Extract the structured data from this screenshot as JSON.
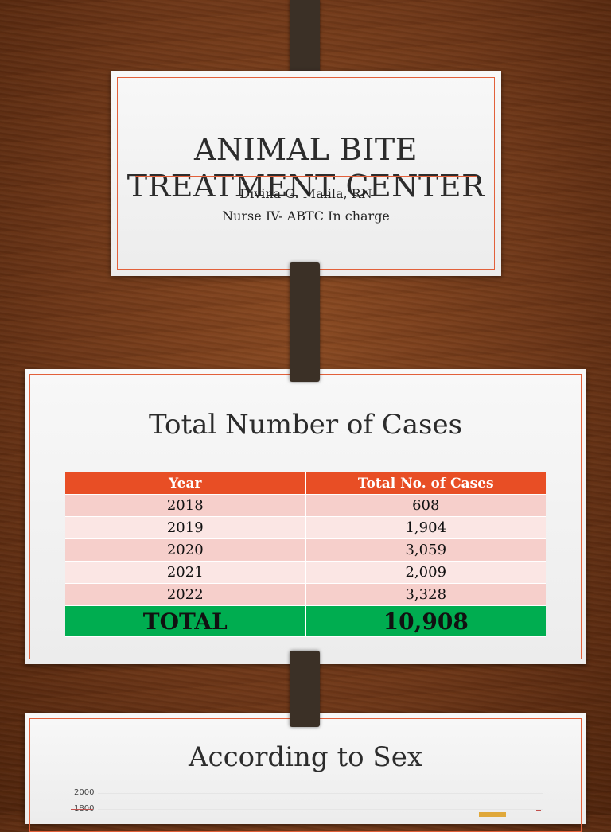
{
  "slide1": {
    "title": "ANIMAL BITE TREATMENT CENTER",
    "presenter": "Divina G. Malila, RN",
    "role": "Nurse IV- ABTC In charge"
  },
  "slide2": {
    "title": "Total Number of Cases",
    "headers": [
      "Year",
      "Total No. of Cases"
    ],
    "rows": [
      [
        "2018",
        "608"
      ],
      [
        "2019",
        "1,904"
      ],
      [
        "2020",
        "3,059"
      ],
      [
        "2021",
        "2,009"
      ],
      [
        "2022",
        "3,328"
      ]
    ],
    "total_label": "TOTAL",
    "total_value": "10,908"
  },
  "slide3": {
    "title": "According to Sex",
    "y_ticks": [
      "2000",
      "1800"
    ]
  },
  "colors": {
    "accent": "#e2603a",
    "header": "#e84e25",
    "total": "#00ad50"
  }
}
